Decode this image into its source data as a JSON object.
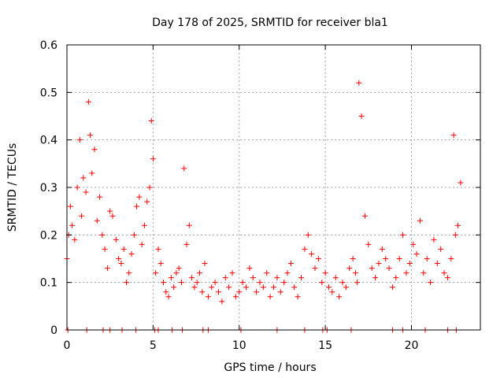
{
  "chart_data": {
    "type": "scatter",
    "title": "Day 178 of 2025, SRMTID for receiver bla1",
    "xlabel": "GPS time / hours",
    "ylabel": "SRMTID / TECUs",
    "xlim": [
      0,
      24
    ],
    "ylim": [
      0,
      0.6
    ],
    "x_ticks": [
      0,
      5,
      10,
      15,
      20
    ],
    "x_tick_labels": [
      "0",
      "5",
      "10",
      "15",
      "20"
    ],
    "y_ticks": [
      0,
      0.1,
      0.2,
      0.3,
      0.4,
      0.5,
      0.6
    ],
    "y_tick_labels": [
      "0",
      "0.1",
      "0.2",
      "0.3",
      "0.4",
      "0.5",
      "0.6"
    ],
    "grid": true,
    "marker": "plus",
    "color": "#ff0000",
    "series": [
      {
        "name": "SRMTID",
        "x": [
          0.0,
          0.1,
          0.2,
          0.3,
          0.45,
          0.6,
          0.75,
          0.85,
          0.95,
          1.1,
          1.25,
          1.35,
          1.45,
          1.6,
          1.75,
          1.9,
          2.05,
          2.2,
          2.35,
          2.5,
          2.65,
          2.85,
          3.0,
          3.15,
          3.3,
          3.45,
          3.6,
          3.75,
          3.9,
          4.05,
          4.2,
          4.35,
          4.5,
          4.65,
          4.8,
          4.9,
          5.0,
          5.15,
          5.3,
          5.45,
          5.6,
          5.75,
          5.9,
          6.05,
          6.2,
          6.35,
          6.5,
          6.65,
          6.8,
          6.95,
          7.1,
          7.25,
          7.4,
          7.55,
          7.7,
          7.85,
          8.0,
          8.2,
          8.4,
          8.6,
          8.8,
          9.0,
          9.2,
          9.4,
          9.6,
          9.8,
          10.0,
          10.2,
          10.4,
          10.6,
          10.8,
          11.0,
          11.2,
          11.4,
          11.6,
          11.8,
          12.0,
          12.2,
          12.4,
          12.6,
          12.8,
          13.0,
          13.2,
          13.4,
          13.6,
          13.8,
          14.0,
          14.2,
          14.4,
          14.6,
          14.8,
          15.0,
          15.2,
          15.4,
          15.6,
          15.8,
          16.0,
          16.2,
          16.4,
          16.6,
          16.75,
          16.85,
          16.95,
          17.1,
          17.3,
          17.5,
          17.7,
          17.9,
          18.1,
          18.3,
          18.5,
          18.7,
          18.9,
          19.1,
          19.3,
          19.5,
          19.7,
          19.9,
          20.1,
          20.3,
          20.5,
          20.7,
          20.9,
          21.1,
          21.3,
          21.5,
          21.7,
          21.9,
          22.1,
          22.3,
          22.45,
          22.55,
          22.7,
          22.85
        ],
        "y": [
          0.15,
          0.2,
          0.26,
          0.22,
          0.19,
          0.3,
          0.4,
          0.24,
          0.32,
          0.29,
          0.48,
          0.41,
          0.33,
          0.38,
          0.23,
          0.28,
          0.2,
          0.17,
          0.13,
          0.25,
          0.24,
          0.19,
          0.15,
          0.14,
          0.17,
          0.1,
          0.12,
          0.16,
          0.2,
          0.26,
          0.28,
          0.18,
          0.22,
          0.27,
          0.3,
          0.44,
          0.36,
          0.12,
          0.17,
          0.14,
          0.1,
          0.08,
          0.07,
          0.11,
          0.09,
          0.12,
          0.13,
          0.1,
          0.34,
          0.18,
          0.22,
          0.11,
          0.09,
          0.1,
          0.12,
          0.08,
          0.14,
          0.07,
          0.09,
          0.1,
          0.08,
          0.06,
          0.11,
          0.09,
          0.12,
          0.07,
          0.08,
          0.1,
          0.09,
          0.13,
          0.11,
          0.08,
          0.1,
          0.09,
          0.12,
          0.07,
          0.09,
          0.11,
          0.08,
          0.1,
          0.12,
          0.14,
          0.09,
          0.07,
          0.11,
          0.17,
          0.2,
          0.16,
          0.13,
          0.15,
          0.1,
          0.12,
          0.09,
          0.08,
          0.11,
          0.07,
          0.1,
          0.09,
          0.13,
          0.15,
          0.12,
          0.1,
          0.52,
          0.45,
          0.24,
          0.18,
          0.13,
          0.11,
          0.14,
          0.17,
          0.15,
          0.13,
          0.09,
          0.11,
          0.15,
          0.2,
          0.12,
          0.14,
          0.18,
          0.16,
          0.23,
          0.12,
          0.15,
          0.1,
          0.19,
          0.14,
          0.17,
          0.12,
          0.11,
          0.15,
          0.41,
          0.2,
          0.22,
          0.31
        ]
      }
    ],
    "zero_x": [
      0.05,
      1.15,
      2.1,
      2.5,
      3.2,
      4.0,
      5.1,
      5.3,
      6.1,
      6.7,
      7.9,
      8.2,
      10.1,
      12.2,
      13.8,
      14.85,
      15.1,
      16.5,
      18.9,
      19.5,
      20.8,
      22.1,
      22.6
    ]
  }
}
